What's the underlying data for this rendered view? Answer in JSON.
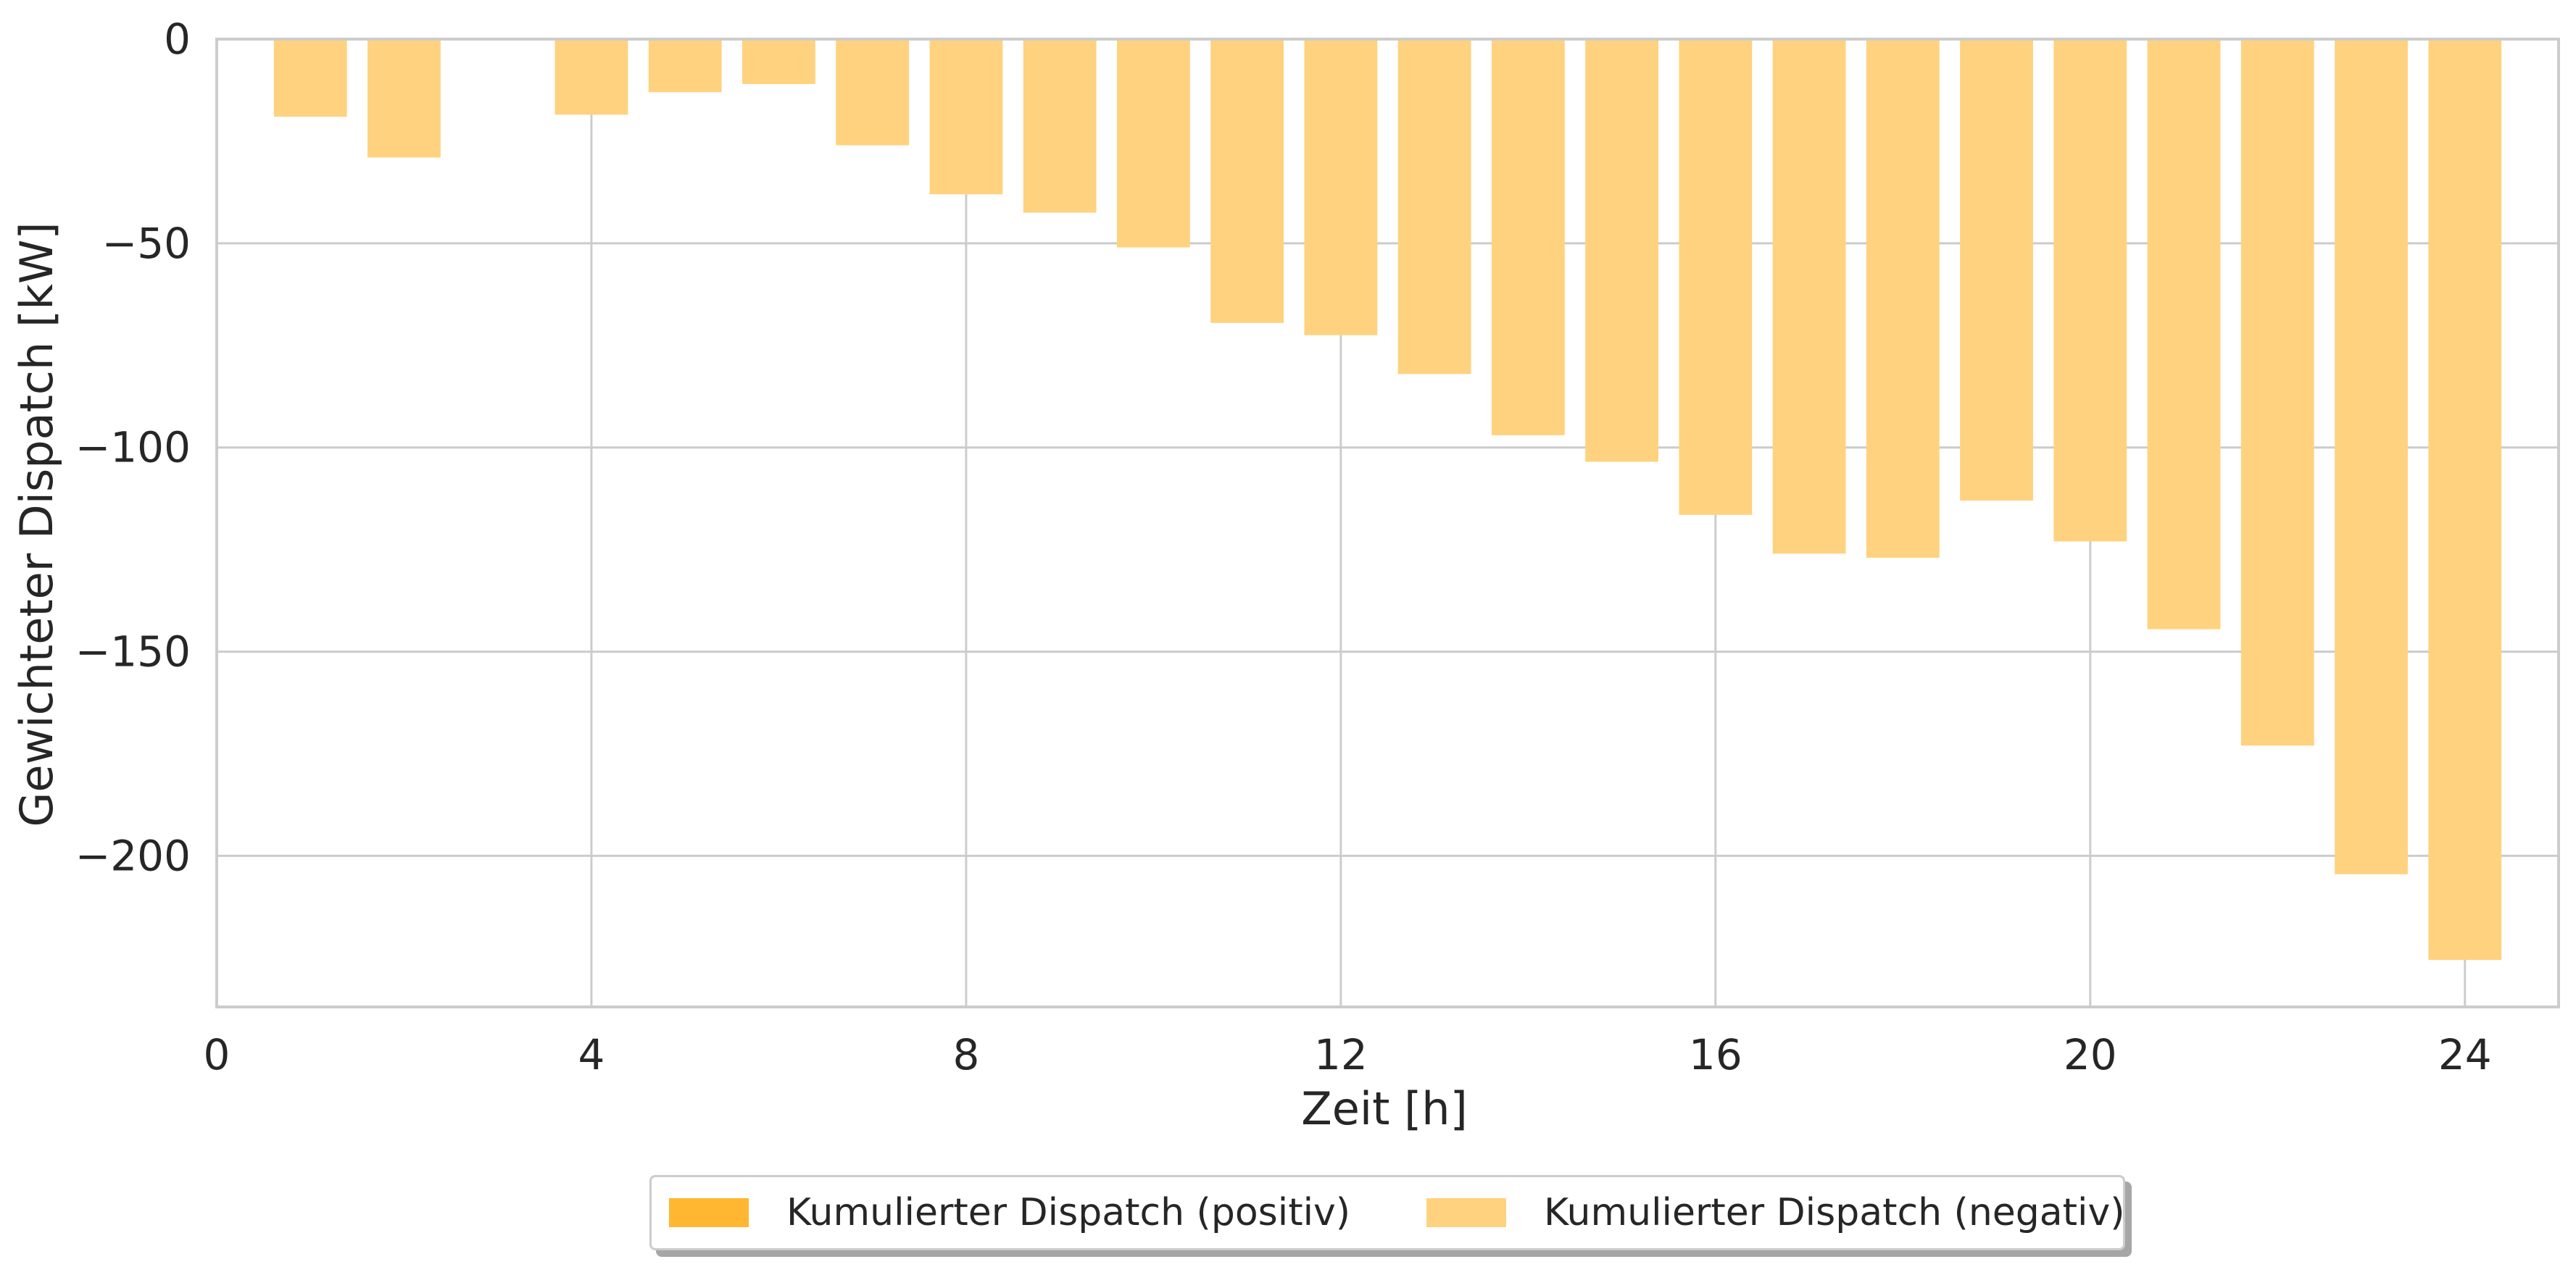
{
  "chart_data": {
    "type": "bar",
    "xlabel": "Zeit [h]",
    "ylabel": "Gewichteter Dispatch [kW]",
    "xlim": [
      0,
      25
    ],
    "ylim": [
      -237,
      0
    ],
    "xticks": [
      0,
      4,
      8,
      12,
      16,
      20,
      24
    ],
    "yticks": [
      0,
      -50,
      -100,
      -150,
      -200
    ],
    "ytick_labels": [
      "0",
      "−50",
      "−100",
      "−150",
      "−200"
    ],
    "grid": true,
    "x": [
      1,
      2,
      3,
      4,
      5,
      6,
      7,
      8,
      9,
      10,
      11,
      12,
      13,
      14,
      15,
      16,
      17,
      18,
      19,
      20,
      21,
      22,
      23,
      24
    ],
    "series": [
      {
        "name": "Kumulierter Dispatch (positiv)",
        "color": "#ffb732",
        "values": [
          0,
          0,
          0,
          0,
          0,
          0,
          0,
          0,
          0,
          0,
          0,
          0,
          0,
          0,
          0,
          0,
          0,
          0,
          0,
          0,
          0,
          0,
          0,
          0
        ]
      },
      {
        "name": "Kumulierter Dispatch (negativ)",
        "color": "#ffd27f",
        "values": [
          -19,
          -29,
          0,
          -18.5,
          -13,
          -11,
          -26,
          -38,
          -42.5,
          -51,
          -69.5,
          -72.5,
          -82,
          -97,
          -103.5,
          -116.5,
          -126,
          -127,
          -113,
          -123,
          -144.5,
          -173,
          -204.5,
          -225.5
        ]
      }
    ],
    "legend": {
      "placement": "bottom-center",
      "entries": [
        "Kumulierter Dispatch (positiv)",
        "Kumulierter Dispatch (negativ)"
      ]
    }
  }
}
